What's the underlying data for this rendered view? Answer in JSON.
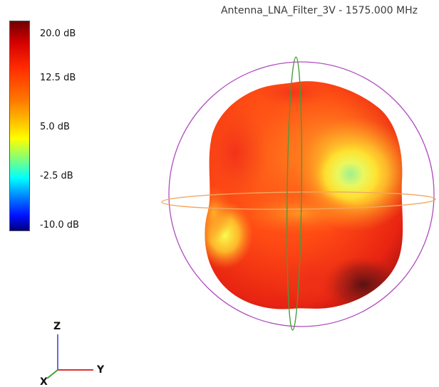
{
  "title": "Antenna_LNA_Filter_3V - 1575.000 MHz",
  "colorbar": {
    "labels": [
      "20.0 dB",
      "12.5 dB",
      "5.0 dB",
      "-2.5 dB",
      "-10.0 dB"
    ]
  },
  "axes": {
    "z": "Z",
    "y": "Y",
    "x": "X"
  },
  "colors": {
    "elevation_ring": "#b04cc0",
    "equator_ring": "#f0a860",
    "meridian_ring": "#4a9a3a",
    "axis_z": "#6a6adc",
    "axis_y": "#e03030",
    "axis_x": "#40a040"
  }
}
